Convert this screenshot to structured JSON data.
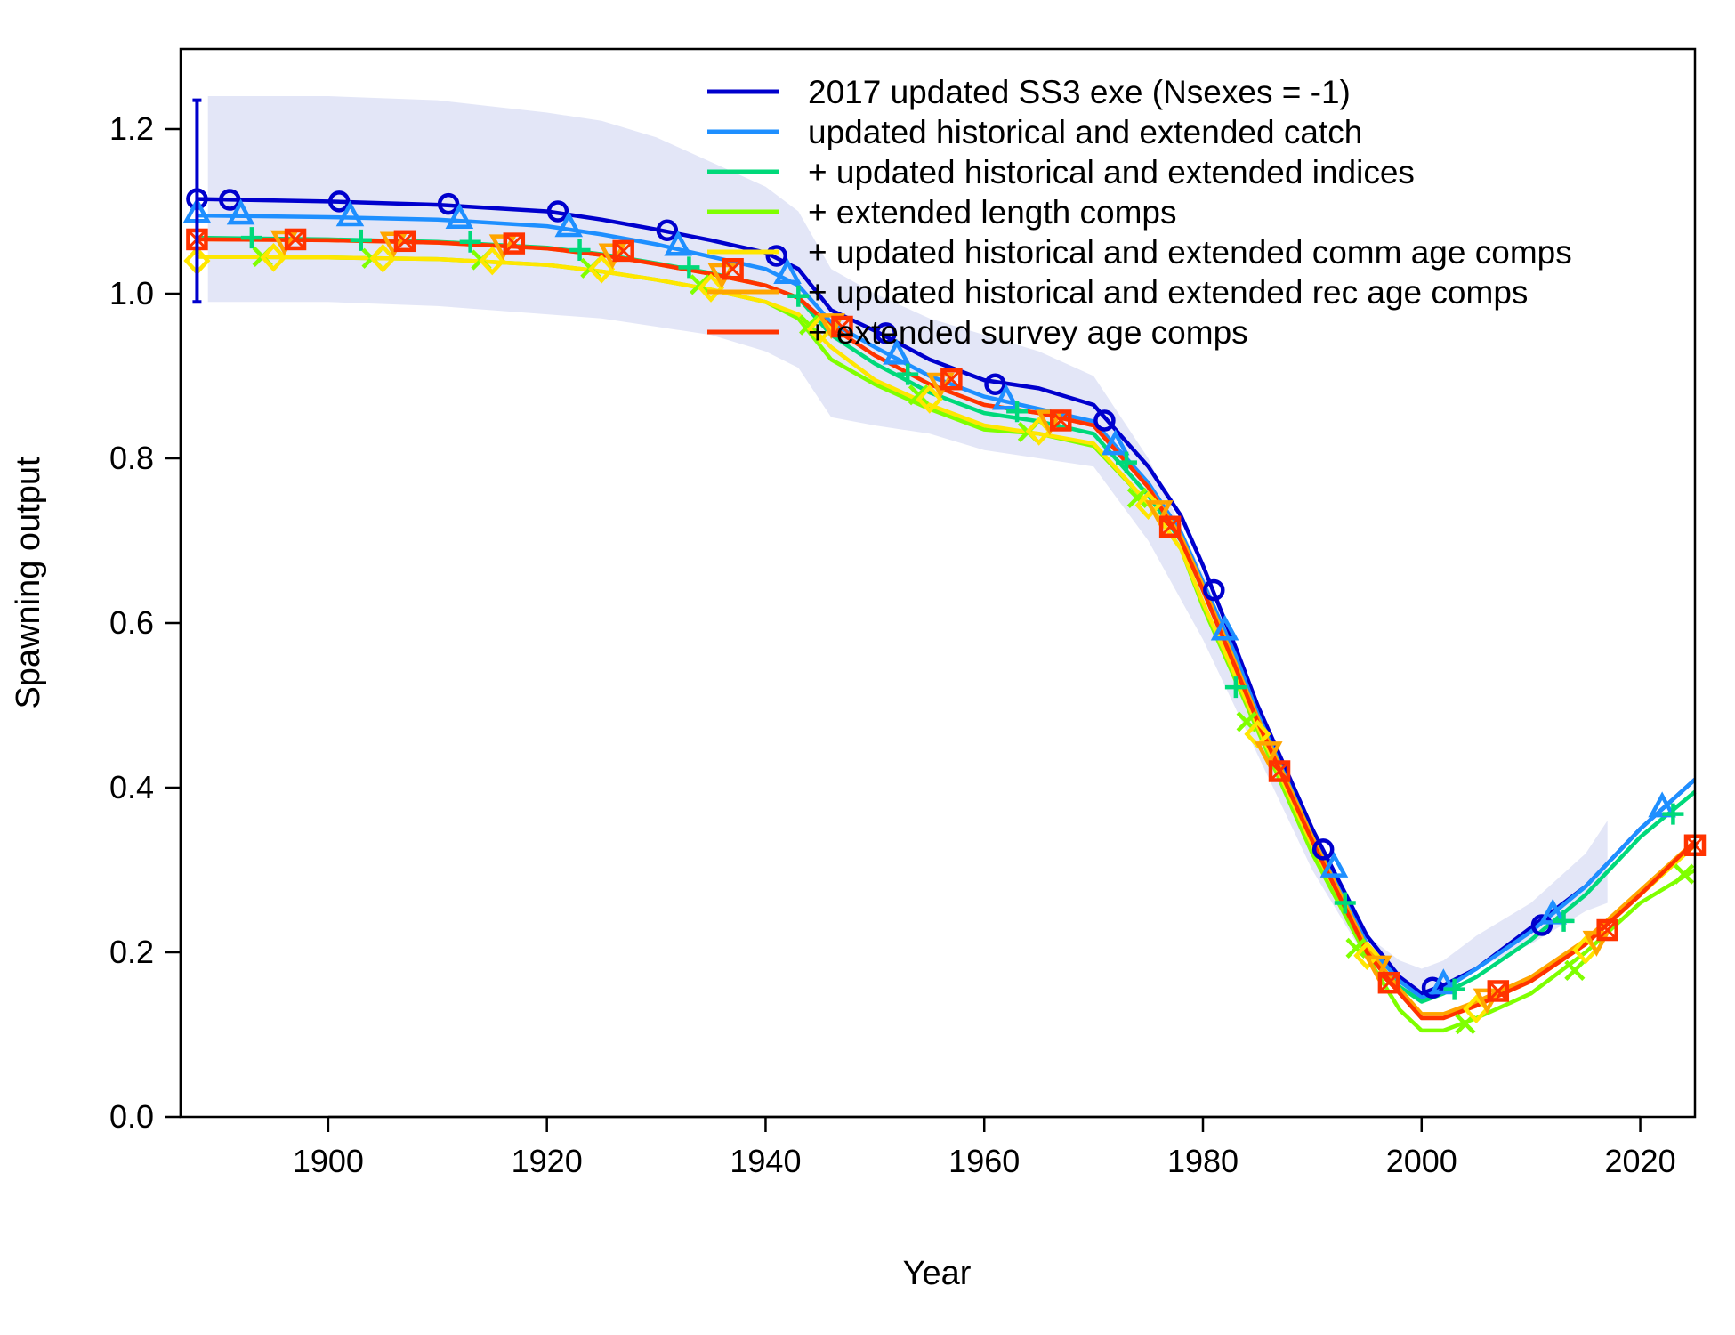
{
  "chart_data": {
    "type": "line",
    "title": "",
    "xlabel": "Year",
    "ylabel": "Spawning output",
    "xlim": [
      1886.5,
      2025
    ],
    "ylim": [
      0,
      1.3
    ],
    "x_ticks": [
      1900,
      1920,
      1940,
      1960,
      1980,
      2000,
      2020
    ],
    "x_tick_labels": [
      "1900",
      "1920",
      "1940",
      "1960",
      "1980",
      "2000",
      "2020"
    ],
    "y_ticks": [
      0,
      0.2,
      0.4,
      0.6,
      0.8,
      1.0,
      1.2
    ],
    "y_tick_labels": [
      "0.0",
      "0.2",
      "0.4",
      "0.6",
      "0.8",
      "1.0",
      "1.2"
    ],
    "grid": false,
    "legend_position": "top-right",
    "uncertainty_band": {
      "series": "2017 updated SS3 exe (Nsexes = -1)",
      "color": "#e3e6f7",
      "x": [
        1889,
        1900,
        1910,
        1920,
        1925,
        1930,
        1935,
        1940,
        1943,
        1946,
        1950,
        1955,
        1960,
        1965,
        1970,
        1975,
        1980,
        1985,
        1990,
        1995,
        1998,
        2000,
        2002,
        2005,
        2010,
        2015,
        2017
      ],
      "upper": [
        1.24,
        1.24,
        1.235,
        1.22,
        1.21,
        1.19,
        1.16,
        1.13,
        1.1,
        1.03,
        1.0,
        0.97,
        0.95,
        0.93,
        0.9,
        0.8,
        0.66,
        0.5,
        0.35,
        0.22,
        0.19,
        0.18,
        0.19,
        0.22,
        0.26,
        0.32,
        0.36
      ],
      "lower": [
        0.99,
        0.99,
        0.985,
        0.975,
        0.97,
        0.96,
        0.95,
        0.93,
        0.91,
        0.85,
        0.84,
        0.83,
        0.81,
        0.8,
        0.79,
        0.7,
        0.58,
        0.44,
        0.3,
        0.19,
        0.16,
        0.15,
        0.16,
        0.18,
        0.21,
        0.25,
        0.26
      ]
    },
    "initial_interval": {
      "x": 1888,
      "y": 1.115,
      "low": 0.99,
      "high": 1.235
    },
    "series": [
      {
        "name": "2017 updated SS3 exe (Nsexes = -1)",
        "color": "#0000cd",
        "marker": "circle",
        "x": [
          1888,
          1900,
          1910,
          1920,
          1925,
          1930,
          1935,
          1940,
          1943,
          1946,
          1950,
          1955,
          1960,
          1965,
          1970,
          1975,
          1978,
          1980,
          1983,
          1985,
          1990,
          1995,
          1998,
          2000,
          2002,
          2005,
          2010,
          2015,
          2020,
          2025
        ],
        "y": [
          1.115,
          1.112,
          1.108,
          1.1,
          1.09,
          1.078,
          1.065,
          1.05,
          1.03,
          0.98,
          0.955,
          0.92,
          0.895,
          0.885,
          0.865,
          0.79,
          0.73,
          0.67,
          0.57,
          0.5,
          0.35,
          0.22,
          0.17,
          0.15,
          0.16,
          0.18,
          0.23,
          0.28,
          0.35,
          0.41
        ],
        "marker_x": [
          1888,
          1891,
          1901,
          1911,
          1921,
          1931,
          1941,
          1951,
          1961,
          1971,
          1981,
          1991,
          2001,
          2011
        ],
        "marker_y": [
          1.115,
          1.114,
          1.112,
          1.109,
          1.1,
          1.077,
          1.046,
          0.952,
          0.89,
          0.846,
          0.64,
          0.325,
          0.157,
          0.233
        ]
      },
      {
        "name": "updated historical and extended catch",
        "color": "#1e8fff",
        "marker": "triangle",
        "x": [
          1888,
          1900,
          1910,
          1920,
          1925,
          1930,
          1935,
          1940,
          1943,
          1946,
          1950,
          1955,
          1960,
          1965,
          1970,
          1975,
          1978,
          1980,
          1983,
          1985,
          1990,
          1995,
          1998,
          2000,
          2002,
          2005,
          2010,
          2015,
          2020,
          2025
        ],
        "y": [
          1.095,
          1.093,
          1.09,
          1.082,
          1.072,
          1.06,
          1.045,
          1.03,
          1.01,
          0.965,
          0.935,
          0.9,
          0.875,
          0.86,
          0.845,
          0.77,
          0.71,
          0.65,
          0.56,
          0.49,
          0.34,
          0.21,
          0.165,
          0.145,
          0.155,
          0.18,
          0.225,
          0.28,
          0.35,
          0.41
        ],
        "marker_x": [
          1888,
          1892,
          1902,
          1912,
          1922,
          1932,
          1942,
          1952,
          1962,
          1972,
          1982,
          1992,
          2002,
          2012,
          2022
        ],
        "marker_y": [
          1.097,
          1.095,
          1.093,
          1.09,
          1.08,
          1.057,
          1.023,
          0.925,
          0.87,
          0.815,
          0.59,
          0.302,
          0.16,
          0.245,
          0.375
        ]
      },
      {
        "name": "+ updated historical and extended indices",
        "color": "#00d97a",
        "marker": "plus",
        "x": [
          1888,
          1900,
          1910,
          1920,
          1925,
          1930,
          1935,
          1940,
          1943,
          1946,
          1950,
          1955,
          1960,
          1965,
          1970,
          1975,
          1978,
          1980,
          1983,
          1985,
          1990,
          1995,
          1998,
          2000,
          2002,
          2005,
          2010,
          2015,
          2020,
          2025
        ],
        "y": [
          1.068,
          1.066,
          1.063,
          1.056,
          1.048,
          1.037,
          1.025,
          1.01,
          0.995,
          0.95,
          0.915,
          0.88,
          0.855,
          0.845,
          0.83,
          0.755,
          0.7,
          0.64,
          0.55,
          0.48,
          0.335,
          0.2,
          0.158,
          0.14,
          0.15,
          0.17,
          0.215,
          0.27,
          0.34,
          0.395
        ],
        "marker_x": [
          1893,
          1903,
          1913,
          1923,
          1933,
          1943,
          1953,
          1963,
          1973,
          1983,
          1993,
          2003,
          2013,
          2023
        ],
        "marker_y": [
          1.068,
          1.065,
          1.063,
          1.053,
          1.032,
          0.997,
          0.902,
          0.857,
          0.795,
          0.522,
          0.26,
          0.155,
          0.238,
          0.368
        ]
      },
      {
        "name": "+ extended length comps",
        "color": "#7fff00",
        "marker": "cross",
        "x": [
          1888,
          1900,
          1910,
          1920,
          1925,
          1930,
          1935,
          1940,
          1943,
          1946,
          1950,
          1955,
          1960,
          1965,
          1970,
          1975,
          1978,
          1980,
          1983,
          1985,
          1990,
          1995,
          1998,
          2000,
          2002,
          2005,
          2010,
          2015,
          2020,
          2025
        ],
        "y": [
          1.045,
          1.044,
          1.042,
          1.035,
          1.027,
          1.017,
          1.005,
          0.99,
          0.97,
          0.92,
          0.89,
          0.86,
          0.835,
          0.83,
          0.815,
          0.745,
          0.69,
          0.62,
          0.53,
          0.47,
          0.32,
          0.195,
          0.13,
          0.105,
          0.105,
          0.12,
          0.15,
          0.2,
          0.26,
          0.3
        ],
        "marker_x": [
          1894,
          1904,
          1914,
          1924,
          1934,
          1944,
          1954,
          1964,
          1974,
          1984,
          1994,
          2004,
          2014,
          2024
        ],
        "marker_y": [
          1.045,
          1.043,
          1.041,
          1.031,
          1.011,
          0.962,
          0.877,
          0.832,
          0.752,
          0.48,
          0.205,
          0.113,
          0.178,
          0.295
        ]
      },
      {
        "name": "+ updated historical and extended comm age comps",
        "color": "#ffe600",
        "marker": "diamond",
        "x": [
          1888,
          1900,
          1910,
          1920,
          1925,
          1930,
          1935,
          1940,
          1943,
          1946,
          1950,
          1955,
          1960,
          1965,
          1970,
          1975,
          1978,
          1980,
          1983,
          1985,
          1990,
          1995,
          1998,
          2000,
          2002,
          2005,
          2010,
          2015,
          2020,
          2025
        ],
        "y": [
          1.045,
          1.044,
          1.042,
          1.035,
          1.027,
          1.017,
          1.005,
          0.99,
          0.975,
          0.935,
          0.895,
          0.865,
          0.84,
          0.83,
          0.818,
          0.745,
          0.69,
          0.625,
          0.535,
          0.475,
          0.33,
          0.205,
          0.155,
          0.125,
          0.125,
          0.135,
          0.165,
          0.21,
          0.27,
          0.33
        ],
        "marker_x": [
          1888,
          1895,
          1905,
          1915,
          1925,
          1935,
          1945,
          1955,
          1965,
          1975,
          1985,
          1995,
          2005,
          2015
        ],
        "marker_y": [
          1.04,
          1.044,
          1.043,
          1.04,
          1.03,
          1.007,
          0.957,
          0.872,
          0.833,
          0.743,
          0.465,
          0.196,
          0.131,
          0.203
        ]
      },
      {
        "name": "+ updated historical and extended rec age comps",
        "color": "#ffa500",
        "marker": "inverted-triangle",
        "x": [
          1888,
          1900,
          1910,
          1920,
          1925,
          1930,
          1935,
          1940,
          1943,
          1946,
          1950,
          1955,
          1960,
          1965,
          1970,
          1975,
          1978,
          1980,
          1983,
          1985,
          1990,
          1995,
          1998,
          2000,
          2002,
          2005,
          2010,
          2015,
          2020,
          2025
        ],
        "y": [
          1.066,
          1.065,
          1.062,
          1.055,
          1.047,
          1.036,
          1.024,
          1.01,
          0.995,
          0.96,
          0.925,
          0.89,
          0.865,
          0.855,
          0.84,
          0.765,
          0.705,
          0.645,
          0.55,
          0.485,
          0.34,
          0.205,
          0.155,
          0.125,
          0.125,
          0.14,
          0.17,
          0.215,
          0.275,
          0.335
        ],
        "marker_x": [
          1896,
          1906,
          1916,
          1926,
          1936,
          1946,
          1956,
          1966,
          1976,
          1986,
          1996,
          2006,
          2016
        ],
        "marker_y": [
          1.066,
          1.064,
          1.061,
          1.05,
          1.026,
          0.965,
          0.893,
          0.848,
          0.738,
          0.445,
          0.185,
          0.145,
          0.215
        ]
      },
      {
        "name": "+ extended survey age comps",
        "color": "#ff3300",
        "marker": "square",
        "x": [
          1888,
          1900,
          1910,
          1920,
          1925,
          1930,
          1935,
          1940,
          1943,
          1946,
          1950,
          1955,
          1960,
          1965,
          1970,
          1975,
          1978,
          1980,
          1983,
          1985,
          1990,
          1995,
          1998,
          2000,
          2002,
          2005,
          2010,
          2015,
          2020,
          2025
        ],
        "y": [
          1.066,
          1.065,
          1.062,
          1.055,
          1.047,
          1.036,
          1.024,
          1.01,
          0.995,
          0.96,
          0.925,
          0.89,
          0.865,
          0.855,
          0.84,
          0.765,
          0.7,
          0.64,
          0.545,
          0.48,
          0.335,
          0.2,
          0.15,
          0.12,
          0.12,
          0.135,
          0.165,
          0.21,
          0.27,
          0.335
        ],
        "marker_x": [
          1888,
          1897,
          1907,
          1917,
          1927,
          1937,
          1947,
          1957,
          1967,
          1977,
          1987,
          1997,
          2007,
          2017,
          2025
        ],
        "marker_y": [
          1.066,
          1.066,
          1.064,
          1.061,
          1.052,
          1.03,
          0.96,
          0.896,
          0.846,
          0.717,
          0.42,
          0.163,
          0.153,
          0.227,
          0.33
        ]
      }
    ]
  }
}
